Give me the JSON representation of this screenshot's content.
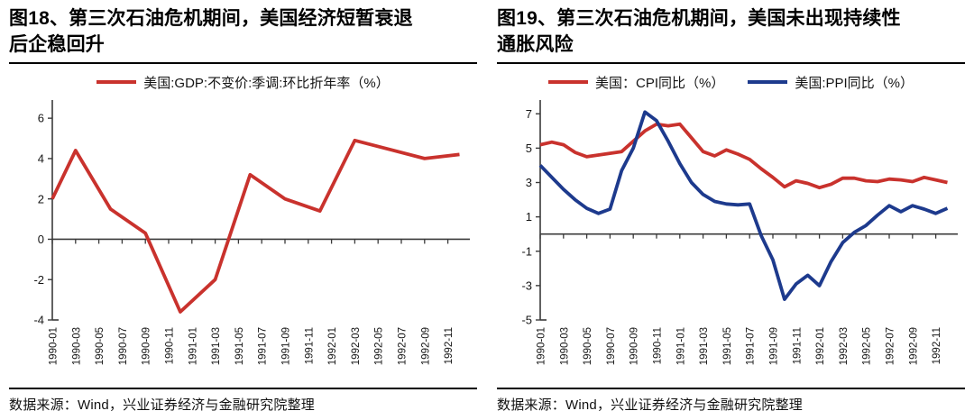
{
  "source_note": "数据来源：Wind，兴业证券经济与金融研究院整理",
  "colors": {
    "series_red": "#c9322d",
    "series_blue": "#1d3a8d",
    "axis": "#3a3a3a",
    "divider": "#000000"
  },
  "chart_data": [
    {
      "type": "line",
      "title": "图18、第三次石油危机期间，美国经济短暂衰退后企稳回升",
      "legend": [
        {
          "label": "美国:GDP:不变价:季调:环比折年率（%）",
          "color": "#c9322d"
        }
      ],
      "x_tick_labels": [
        "1990-01",
        "1990-03",
        "1990-05",
        "1990-07",
        "1990-09",
        "1990-11",
        "1991-01",
        "1991-03",
        "1991-05",
        "1991-07",
        "1991-09",
        "1991-11",
        "1992-01",
        "1992-03",
        "1992-05",
        "1992-07",
        "1992-09",
        "1992-11"
      ],
      "y_ticks": [
        6,
        4,
        2,
        0,
        -2,
        -4
      ],
      "ylim": [
        -4,
        6.9
      ],
      "grid": false,
      "legend_position": "top-center",
      "series": [
        {
          "name": "美国:GDP:不变价:季调:环比折年率（%）",
          "color": "#c9322d",
          "months": [
            0,
            2,
            5,
            8,
            11,
            14,
            17,
            20,
            23,
            26,
            29,
            32,
            35
          ],
          "values": [
            2.0,
            4.4,
            1.5,
            0.3,
            -3.6,
            -2.0,
            3.2,
            2.0,
            1.4,
            4.9,
            4.45,
            4.0,
            4.2
          ]
        }
      ]
    },
    {
      "type": "line",
      "title": "图19、第三次石油危机期间，美国未出现持续性通胀风险",
      "legend": [
        {
          "label": "美国：CPI同比（%）",
          "color": "#c9322d"
        },
        {
          "label": "美国:PPI同比（%）",
          "color": "#1d3a8d"
        }
      ],
      "x_tick_labels": [
        "1990-01",
        "1990-03",
        "1990-05",
        "1990-07",
        "1990-09",
        "1990-11",
        "1991-01",
        "1991-03",
        "1991-05",
        "1991-07",
        "1991-09",
        "1991-11",
        "1992-01",
        "1992-03",
        "1992-05",
        "1992-07",
        "1992-09",
        "1992-11"
      ],
      "y_ticks": [
        7,
        5,
        3,
        1,
        -1,
        -3,
        -5
      ],
      "ylim": [
        -5,
        7.8
      ],
      "grid": false,
      "legend_position": "top-center",
      "series": [
        {
          "name": "美国：CPI同比（%）",
          "color": "#c9322d",
          "values": [
            5.2,
            5.35,
            5.2,
            4.75,
            4.5,
            4.6,
            4.7,
            4.8,
            5.4,
            6.0,
            6.4,
            6.3,
            6.4,
            5.6,
            4.8,
            4.55,
            4.9,
            4.65,
            4.35,
            3.8,
            3.3,
            2.75,
            3.1,
            2.95,
            2.7,
            2.9,
            3.25,
            3.25,
            3.1,
            3.05,
            3.2,
            3.15,
            3.05,
            3.3,
            3.15,
            3.0
          ]
        },
        {
          "name": "美国:PPI同比（%）",
          "color": "#1d3a8d",
          "values": [
            4.0,
            3.3,
            2.6,
            2.0,
            1.5,
            1.2,
            1.45,
            3.7,
            5.0,
            7.1,
            6.6,
            5.4,
            4.1,
            3.0,
            2.3,
            1.9,
            1.75,
            1.7,
            1.75,
            -0.1,
            -1.5,
            -3.8,
            -2.9,
            -2.4,
            -3.0,
            -1.6,
            -0.5,
            0.1,
            0.5,
            1.1,
            1.65,
            1.3,
            1.65,
            1.45,
            1.2,
            1.5
          ]
        }
      ]
    }
  ]
}
